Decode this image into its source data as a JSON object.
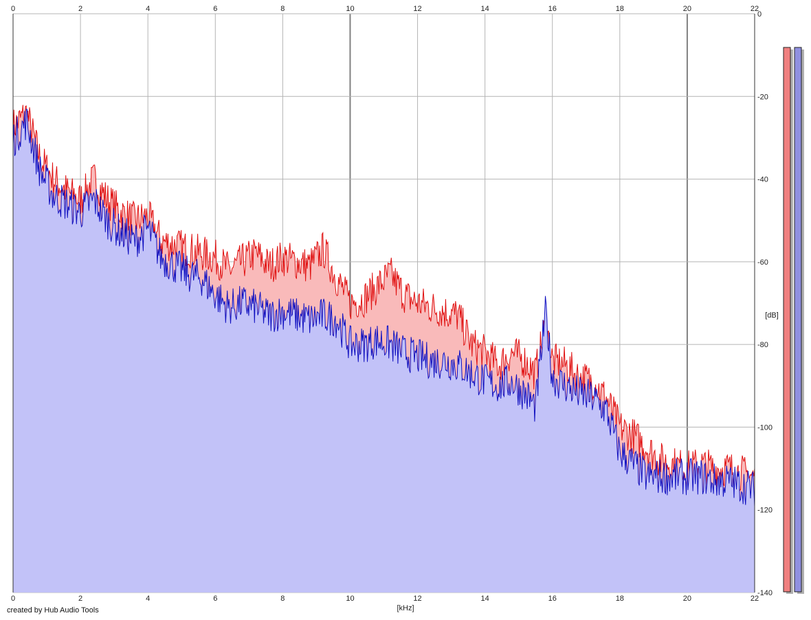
{
  "credit": "created by Hub Audio Tools",
  "colors": {
    "left_fill": "#f9baba",
    "left_line": "#e01010",
    "right_fill": "#c2c2f8",
    "right_line": "#1010c0",
    "grid": "#b4b4b4",
    "grid_major": "#808080",
    "meter_left": "#f08080",
    "meter_right": "#9090e0"
  },
  "chart_data": {
    "type": "area",
    "title": "",
    "xlabel": "[kHz]",
    "ylabel": "[dB]",
    "xlim": [
      0,
      22
    ],
    "ylim": [
      -140,
      0
    ],
    "x_ticks": [
      0,
      2,
      4,
      6,
      8,
      10,
      12,
      14,
      16,
      18,
      20,
      22
    ],
    "y_ticks": [
      0,
      -20,
      -40,
      -60,
      -80,
      -100,
      -120,
      -140
    ],
    "grid": true,
    "series": [
      {
        "channel": "left",
        "x": [
          0.05,
          0.4,
          0.8,
          1.2,
          1.6,
          2.0,
          2.4,
          2.8,
          3.2,
          3.6,
          4.0,
          4.4,
          4.8,
          5.2,
          5.6,
          6.0,
          6.4,
          6.8,
          7.2,
          7.6,
          8.0,
          8.4,
          8.8,
          9.2,
          9.6,
          10.0,
          10.4,
          10.8,
          11.2,
          11.6,
          12.0,
          12.4,
          12.8,
          13.2,
          13.6,
          14.0,
          14.4,
          14.8,
          15.2,
          15.5,
          15.8,
          16.0,
          16.4,
          16.8,
          17.2,
          17.6,
          18.0,
          18.4,
          18.8,
          19.2,
          19.6,
          20.0,
          20.4,
          20.8,
          21.2,
          21.6,
          22.0
        ],
        "values": [
          -27,
          -24,
          -35,
          -40,
          -43,
          -45,
          -40,
          -45,
          -48,
          -50,
          -49,
          -55,
          -56,
          -57,
          -58,
          -59,
          -62,
          -60,
          -58,
          -61,
          -59,
          -60,
          -61,
          -57,
          -64,
          -70,
          -69,
          -66,
          -63,
          -68,
          -70,
          -71,
          -72,
          -73,
          -80,
          -82,
          -85,
          -82,
          -84,
          -87,
          -75,
          -84,
          -85,
          -88,
          -89,
          -93,
          -100,
          -102,
          -105,
          -108,
          -109,
          -110,
          -109,
          -110,
          -110,
          -111,
          -112
        ]
      },
      {
        "channel": "right",
        "x": [
          0.05,
          0.4,
          0.8,
          1.2,
          1.6,
          2.0,
          2.4,
          2.8,
          3.2,
          3.6,
          4.0,
          4.4,
          4.8,
          5.2,
          5.6,
          6.0,
          6.4,
          6.8,
          7.2,
          7.6,
          8.0,
          8.4,
          8.8,
          9.2,
          9.6,
          10.0,
          10.4,
          10.8,
          11.2,
          11.6,
          12.0,
          12.4,
          12.8,
          13.2,
          13.6,
          14.0,
          14.4,
          14.8,
          15.2,
          15.5,
          15.8,
          16.0,
          16.4,
          16.8,
          17.2,
          17.6,
          18.0,
          18.4,
          18.8,
          19.2,
          19.6,
          20.0,
          20.4,
          20.8,
          21.2,
          21.6,
          22.0
        ],
        "values": [
          -30,
          -26,
          -38,
          -44,
          -46,
          -48,
          -45,
          -50,
          -53,
          -55,
          -52,
          -59,
          -61,
          -63,
          -64,
          -68,
          -71,
          -70,
          -71,
          -73,
          -72,
          -73,
          -74,
          -73,
          -74,
          -80,
          -80,
          -79,
          -80,
          -82,
          -83,
          -84,
          -84,
          -85,
          -87,
          -89,
          -90,
          -89,
          -92,
          -95,
          -72,
          -88,
          -90,
          -92,
          -93,
          -96,
          -106,
          -109,
          -112,
          -112,
          -112,
          -112,
          -112,
          -113,
          -113,
          -114,
          -115
        ]
      }
    ]
  }
}
